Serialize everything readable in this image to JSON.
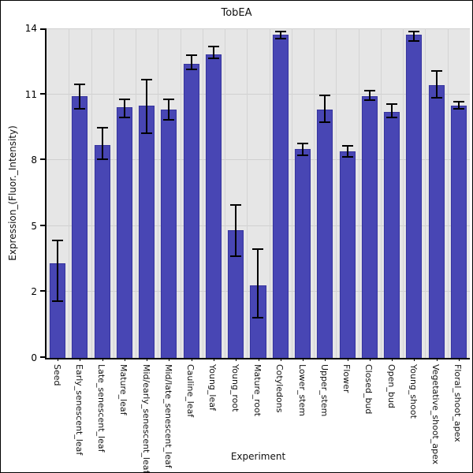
{
  "title": "TobEA",
  "chart_data": {
    "type": "bar",
    "title": "TobEA",
    "xlabel": "Experiment",
    "ylabel": "Expression_(Fluor._Intensity)",
    "yticks": [
      0,
      2,
      5,
      8,
      11,
      14
    ],
    "ylim": [
      0,
      14
    ],
    "grid": true,
    "legend_position": "none",
    "categories": [
      "Seed",
      "Early_senescent_leaf",
      "Late_senescent_leaf",
      "Mature_leaf",
      "Mid/early_senescent_leaf",
      "Mid/late_senescent_leaf",
      "Cauline_leaf",
      "Young_leaf",
      "Young_root",
      "Mature_root",
      "Cotyledons",
      "Lower_stem",
      "Upper_stem",
      "Flower",
      "Closed_bud",
      "Open_bud",
      "Young_shoot",
      "Vegetative_shoot_apex",
      "Floral_shoot_apex"
    ],
    "values": [
      3.3,
      10.9,
      8.7,
      10.4,
      10.5,
      10.3,
      12.4,
      12.8,
      4.8,
      2.3,
      13.7,
      8.5,
      10.3,
      8.4,
      10.9,
      10.2,
      13.7,
      11.4,
      10.5
    ],
    "error_low": [
      1.7,
      10.3,
      8.0,
      9.9,
      9.2,
      9.8,
      12.1,
      12.6,
      3.6,
      1.2,
      13.5,
      8.2,
      9.7,
      8.1,
      10.7,
      9.9,
      13.4,
      10.8,
      10.3
    ],
    "error_high": [
      4.4,
      11.5,
      9.5,
      10.8,
      11.7,
      10.8,
      12.8,
      13.2,
      6.0,
      4.0,
      13.9,
      8.8,
      11.0,
      8.7,
      11.2,
      10.6,
      13.9,
      12.1,
      10.7
    ],
    "colors": {
      "bar": "#4846b4",
      "bar_edge": "#36349e",
      "error": "#000000",
      "plot_background": "#e6e6e6",
      "gridline": "#d0d0d0",
      "axis": "#000000",
      "text": "#111111",
      "outer_background": "#ffffff"
    }
  }
}
